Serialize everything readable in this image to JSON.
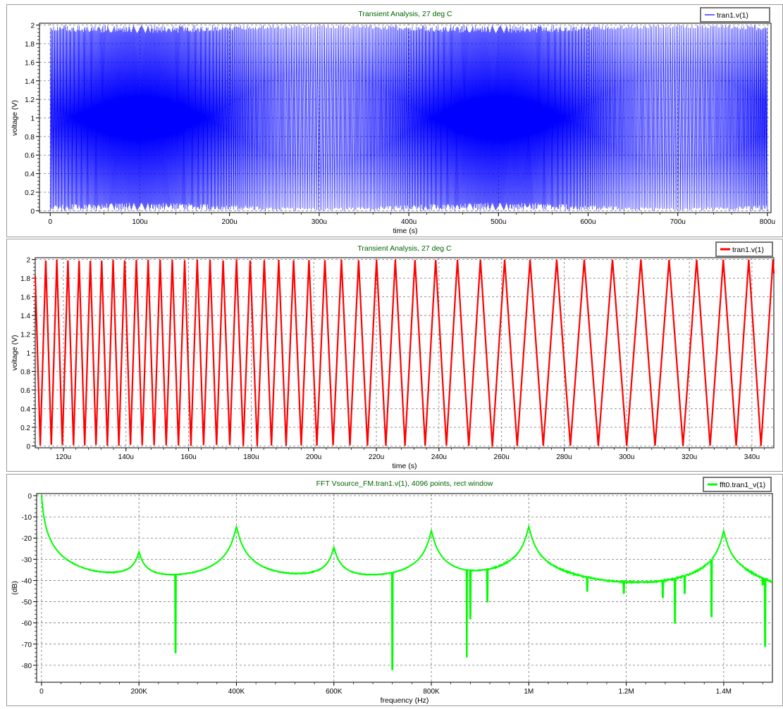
{
  "chart_data": [
    {
      "type": "line",
      "title": "Transient Analysis, 27 deg C",
      "xlabel": "time (s)",
      "ylabel": "voltage (V)",
      "xlim": [
        -1.2e-05,
        0.000804
      ],
      "ylim": [
        -0.02,
        2.02
      ],
      "x_ticks": [
        0,
        0.0001,
        0.0002,
        0.0003,
        0.0004,
        0.0005,
        0.0006,
        0.0007,
        0.0008
      ],
      "x_tick_labels": [
        "0",
        "100u",
        "200u",
        "300u",
        "400u",
        "500u",
        "600u",
        "700u",
        "800u"
      ],
      "y_ticks": [
        0,
        0.2,
        0.4,
        0.6,
        0.8,
        1,
        1.2,
        1.4,
        1.6,
        1.8,
        2
      ],
      "y_tick_labels": [
        "0",
        "0.2",
        "0.4",
        "0.6",
        "0.8",
        "1",
        "1.2",
        "1.4",
        "1.6",
        "1.8",
        "2"
      ],
      "grid": true,
      "legend": "top-right",
      "series": [
        {
          "name": "tran1.v(1)",
          "color": "#0000ff",
          "signal": "FM triangle wave, 0 to 2 V, 0 to 800u s",
          "y_min": 0,
          "y_max": 2
        }
      ]
    },
    {
      "type": "line",
      "title": "Transient Analysis, 27 deg C",
      "xlabel": "time (s)",
      "ylabel": "voltage (V)",
      "xlim": [
        0.000111,
        0.000347
      ],
      "ylim": [
        -0.02,
        2.02
      ],
      "x_ticks": [
        0.00012,
        0.00014,
        0.00016,
        0.00018,
        0.0002,
        0.00022,
        0.00024,
        0.00026,
        0.00028,
        0.0003,
        0.00032,
        0.00034
      ],
      "x_tick_labels": [
        "120u",
        "140u",
        "160u",
        "180u",
        "200u",
        "220u",
        "240u",
        "260u",
        "280u",
        "300u",
        "320u",
        "340u"
      ],
      "y_ticks": [
        0,
        0.2,
        0.4,
        0.6,
        0.8,
        1,
        1.2,
        1.4,
        1.6,
        1.8,
        2
      ],
      "y_tick_labels": [
        "0",
        "0.2",
        "0.4",
        "0.6",
        "0.8",
        "1",
        "1.2",
        "1.4",
        "1.6",
        "1.8",
        "2"
      ],
      "grid": true,
      "legend": "top-right",
      "series": [
        {
          "name": "tran1.v(1)",
          "color": "#ff0000",
          "signal": "FM triangle wave, zoomed 111u to 347u s",
          "y_min": 0,
          "y_max": 2
        }
      ]
    },
    {
      "type": "line",
      "title": "FFT Vsource_FM.tran1.v(1), 4096 points, rect window",
      "xlabel": "frequency (Hz)",
      "ylabel": "(dB)",
      "xlim": [
        -10000,
        1500000
      ],
      "ylim": [
        -88,
        1
      ],
      "x_ticks": [
        0,
        200000,
        400000,
        600000,
        800000,
        1000000,
        1200000,
        1400000
      ],
      "x_tick_labels": [
        "0",
        "200K",
        "400K",
        "600K",
        "800K",
        "1M",
        "1.2M",
        "1.4M"
      ],
      "y_ticks": [
        0,
        -10,
        -20,
        -30,
        -40,
        -50,
        -60,
        -70,
        -80
      ],
      "y_tick_labels": [
        "0",
        "-10",
        "-20",
        "-30",
        "-40",
        "-50",
        "-60",
        "-70",
        "-80"
      ],
      "grid": true,
      "legend": "top-right",
      "series": [
        {
          "name": "fft0.tran1_v(1)",
          "color": "#00ff00",
          "peaks": [
            {
              "f": 0,
              "db": 0
            },
            {
              "f": 200000,
              "db": -29
            },
            {
              "f": 400000,
              "db": -15
            },
            {
              "f": 600000,
              "db": -26
            },
            {
              "f": 800000,
              "db": -17
            },
            {
              "f": 1000000,
              "db": -15
            },
            {
              "f": 1400000,
              "db": -17
            }
          ],
          "spurs": [
            {
              "f": 275000,
              "db": -74
            },
            {
              "f": 720000,
              "db": -82
            },
            {
              "f": 873000,
              "db": -76
            },
            {
              "f": 880000,
              "db": -58
            },
            {
              "f": 915000,
              "db": -50
            },
            {
              "f": 1120000,
              "db": -45
            },
            {
              "f": 1195000,
              "db": -46
            },
            {
              "f": 1275000,
              "db": -48
            },
            {
              "f": 1300000,
              "db": -60
            },
            {
              "f": 1320000,
              "db": -46
            },
            {
              "f": 1375000,
              "db": -57
            },
            {
              "f": 1480000,
              "db": -42
            },
            {
              "f": 1485000,
              "db": -71
            }
          ]
        }
      ]
    }
  ]
}
